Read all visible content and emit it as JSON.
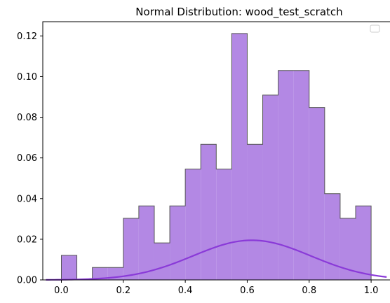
{
  "chart_data": {
    "type": "bar",
    "title": "Normal Distribution: wood_test_scratch",
    "xlabel": "",
    "ylabel": "",
    "xlim": [
      -0.06,
      1.07
    ],
    "ylim": [
      0,
      0.127
    ],
    "xticks": [
      0.0,
      0.2,
      0.4,
      0.6,
      0.8,
      1.0
    ],
    "xtick_labels": [
      "0.0",
      "0.2",
      "0.4",
      "0.6",
      "0.8",
      "1.0"
    ],
    "yticks": [
      0.0,
      0.02,
      0.04,
      0.06,
      0.08,
      0.1,
      0.12
    ],
    "ytick_labels": [
      "0.00",
      "0.02",
      "0.04",
      "0.06",
      "0.08",
      "0.10",
      "0.12"
    ],
    "grid": false,
    "legend": {
      "placement": "top-right",
      "entries": []
    },
    "histogram": {
      "bin_edges": [
        0.0,
        0.05,
        0.1,
        0.15,
        0.2,
        0.25,
        0.3,
        0.35,
        0.4,
        0.45,
        0.5,
        0.55,
        0.6,
        0.65,
        0.7,
        0.75,
        0.8,
        0.85,
        0.9,
        0.95,
        1.0
      ],
      "values": [
        0.0121,
        0.0,
        0.0061,
        0.0061,
        0.0303,
        0.0364,
        0.0182,
        0.0364,
        0.0545,
        0.0667,
        0.0545,
        0.1212,
        0.0667,
        0.0909,
        0.103,
        0.103,
        0.0848,
        0.0424,
        0.0303,
        0.0364
      ],
      "fill_color": "#b388e4",
      "edge_color": "#555555"
    },
    "curve": {
      "type": "line",
      "mean": 0.615,
      "peak": 0.0195,
      "sigma": 0.19,
      "x_range": [
        -0.05,
        1.05
      ],
      "color": "#8a3ad8"
    }
  }
}
